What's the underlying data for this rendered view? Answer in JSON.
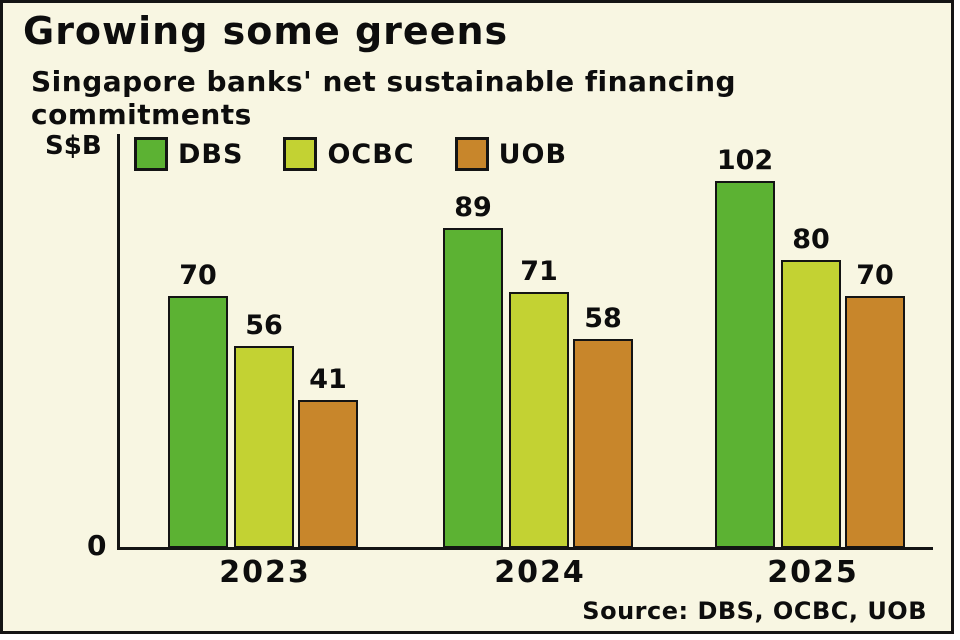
{
  "frame": {
    "title": "Growing some greens",
    "subtitle": "Singapore banks' net sustainable financing commitments",
    "source": "Source: DBS, OCBC, UOB"
  },
  "axis": {
    "y_label": "S$B",
    "origin_label": "0"
  },
  "colors": {
    "background": "#f8f6e2",
    "axis": "#141414",
    "dbs": "#5cb233",
    "ocbc": "#c3d233",
    "uob": "#c8862b"
  },
  "chart_data": {
    "type": "bar",
    "categories": [
      "2023",
      "2024",
      "2025"
    ],
    "series": [
      {
        "name": "DBS",
        "color": "#5cb233",
        "values": [
          70,
          89,
          102
        ]
      },
      {
        "name": "OCBC",
        "color": "#c3d233",
        "values": [
          56,
          71,
          80
        ]
      },
      {
        "name": "UOB",
        "color": "#c8862b",
        "values": [
          41,
          58,
          70
        ]
      }
    ],
    "title": "Growing some greens",
    "subtitle": "Singapore banks' net sustainable financing commitments",
    "xlabel": "",
    "ylabel": "S$B",
    "ylim": [
      0,
      115
    ],
    "grid": false,
    "value_labels": true,
    "legend_position": "top-left",
    "source": "Source: DBS, OCBC, UOB"
  }
}
